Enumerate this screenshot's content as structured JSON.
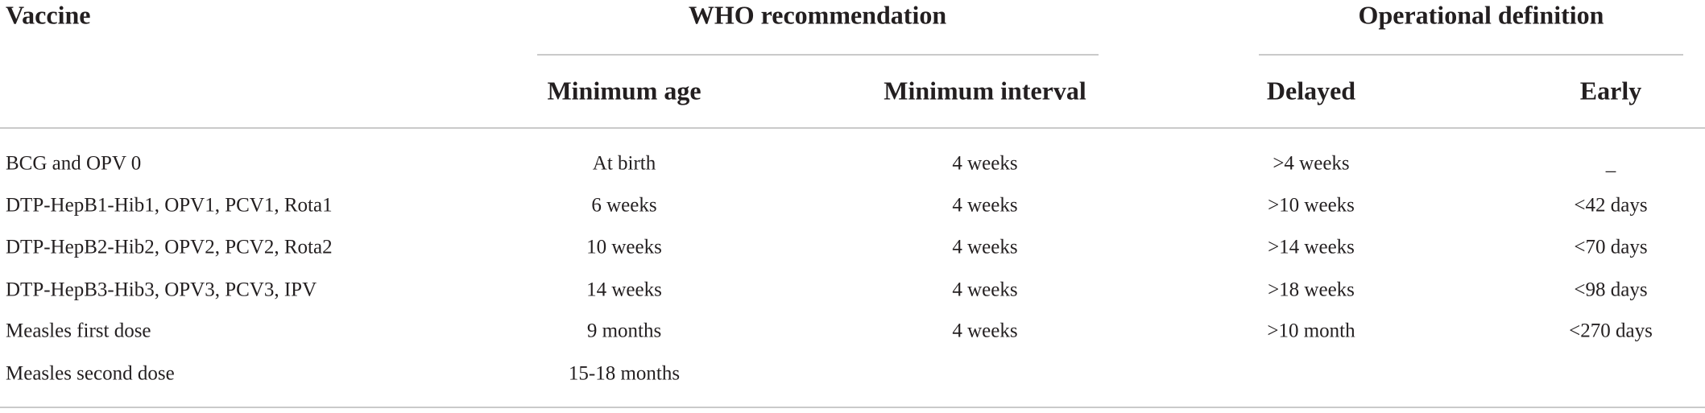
{
  "table": {
    "header": {
      "vaccine": "Vaccine",
      "groups": [
        {
          "label": "WHO recommendation",
          "columns": [
            "Minimum age",
            "Minimum interval"
          ]
        },
        {
          "label": "Operational definition",
          "columns": [
            "Delayed",
            "Early"
          ]
        }
      ]
    },
    "rows": [
      [
        "BCG and OPV 0",
        "At birth",
        "4 weeks",
        ">4 weeks",
        "_"
      ],
      [
        "DTP-HepB1-Hib1, OPV1, PCV1, Rota1",
        "6 weeks",
        "4 weeks",
        ">10 weeks",
        "<42 days"
      ],
      [
        "DTP-HepB2-Hib2, OPV2, PCV2, Rota2",
        "10 weeks",
        "4 weeks",
        ">14 weeks",
        "<70 days"
      ],
      [
        "DTP-HepB3-Hib3, OPV3, PCV3, IPV",
        "14 weeks",
        "4 weeks",
        ">18 weeks",
        "<98 days"
      ],
      [
        "Measles first dose",
        "9 months",
        "4 weeks",
        ">10 month",
        "<270 days"
      ],
      [
        "Measles second dose",
        "15-18 months"
      ]
    ]
  }
}
